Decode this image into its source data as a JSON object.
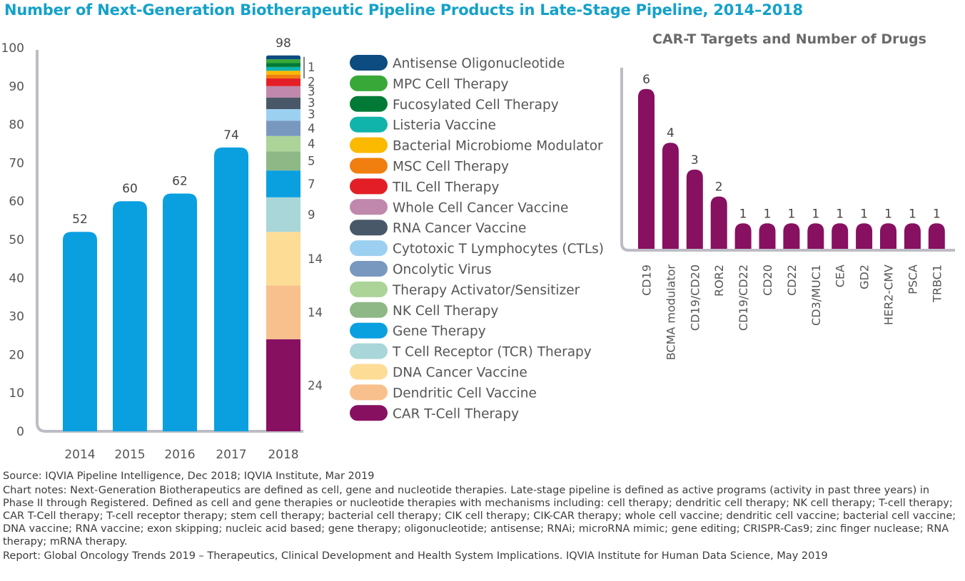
{
  "title": "Number of Next-Generation Biotherapeutic Pipeline Products in Late-Stage Pipeline, 2014–2018",
  "colors": {
    "title": "#14a1c9",
    "bar_blue": "#0aa0e0",
    "axis": "#bcbcc4",
    "car_bar": "#871061"
  },
  "chart_data": [
    {
      "type": "bar",
      "name": "late-stage-pipeline",
      "title": "Number of Next-Generation Biotherapeutic Pipeline Products in Late-Stage Pipeline, 2014–2018",
      "categories": [
        "2014",
        "2015",
        "2016",
        "2017",
        "2018"
      ],
      "values": [
        52,
        60,
        62,
        74,
        98
      ],
      "value_labels": [
        "52",
        "60",
        "62",
        "74",
        "98"
      ],
      "ylim": [
        0,
        100
      ],
      "yticks": [
        "0",
        "10",
        "20",
        "30",
        "40",
        "50",
        "60",
        "70",
        "80",
        "90",
        "100"
      ],
      "grid": false,
      "stacked_2018": {
        "series": [
          {
            "name": "CAR T-Cell Therapy",
            "value": 24,
            "label": "24",
            "color": "#871061"
          },
          {
            "name": "Dendritic Cell Vaccine",
            "value": 14,
            "label": "14",
            "color": "#f8c08c"
          },
          {
            "name": "DNA Cancer Vaccine",
            "value": 14,
            "label": "14",
            "color": "#fddc96"
          },
          {
            "name": "T Cell Receptor (TCR) Therapy",
            "value": 9,
            "label": "9",
            "color": "#a9d6d8"
          },
          {
            "name": "Gene Therapy",
            "value": 7,
            "label": "7",
            "color": "#0aa0e0"
          },
          {
            "name": "NK Cell Therapy",
            "value": 5,
            "label": "5",
            "color": "#8eb886"
          },
          {
            "name": "Therapy Activator/Sensitizer",
            "value": 4,
            "label": "4",
            "color": "#acd498"
          },
          {
            "name": "Oncolytic Virus",
            "value": 4,
            "label": "4",
            "color": "#7898c0"
          },
          {
            "name": "Cytotoxic T Lymphocytes (CTLs)",
            "value": 3,
            "label": "3",
            "color": "#9cd0f0"
          },
          {
            "name": "RNA Cancer Vaccine",
            "value": 3,
            "label": "3",
            "color": "#485868"
          },
          {
            "name": "Whole Cell Cancer Vaccine",
            "value": 3,
            "label": "3",
            "color": "#c088ac"
          },
          {
            "name": "TIL Cell Therapy",
            "value": 2,
            "label": "2",
            "color": "#e41e26"
          },
          {
            "name": "MSC Cell Therapy",
            "value": 1,
            "label": "",
            "color": "#f07f10"
          },
          {
            "name": "Bacterial Microbiome Modulator",
            "value": 1,
            "label": "",
            "color": "#fbb900"
          },
          {
            "name": "Listeria Vaccine",
            "value": 1,
            "label": "",
            "color": "#10b4aa"
          },
          {
            "name": "Fucosylated Cell Therapy",
            "value": 1,
            "label": "",
            "color": "#007a36"
          },
          {
            "name": "MPC Cell Therapy",
            "value": 1,
            "label": "",
            "color": "#38a838"
          },
          {
            "name": "Antisense Oligonucleotide",
            "value": 1,
            "label": "",
            "color": "#0c4c80"
          }
        ],
        "small_segments_label": "1"
      },
      "legend_order": [
        "Antisense Oligonucleotide",
        "MPC Cell Therapy",
        "Fucosylated Cell Therapy",
        "Listeria Vaccine",
        "Bacterial Microbiome Modulator",
        "MSC Cell Therapy",
        "TIL Cell Therapy",
        "Whole Cell Cancer Vaccine",
        "RNA Cancer Vaccine",
        "Cytotoxic T Lymphocytes (CTLs)",
        "Oncolytic Virus",
        "Therapy Activator/Sensitizer",
        "NK Cell Therapy",
        "Gene Therapy",
        "T Cell Receptor (TCR) Therapy",
        "DNA Cancer Vaccine",
        "Dendritic Cell Vaccine",
        "CAR T-Cell Therapy"
      ],
      "legend_position": "right"
    },
    {
      "type": "bar",
      "name": "car-t-targets",
      "title": "CAR-T Targets and Number of Drugs",
      "categories": [
        "CD19",
        "BCMA modulator",
        "CD19/CD20",
        "ROR2",
        "CD19/CD22",
        "CD20",
        "CD22",
        "CD3/MUC1",
        "CEA",
        "GD2",
        "HER2-CMV",
        "PSCA",
        "TRBC1"
      ],
      "values": [
        6,
        4,
        3,
        2,
        1,
        1,
        1,
        1,
        1,
        1,
        1,
        1,
        1
      ],
      "value_labels": [
        "6",
        "4",
        "3",
        "2",
        "1",
        "1",
        "1",
        "1",
        "1",
        "1",
        "1",
        "1",
        "1"
      ],
      "ylim": [
        0,
        7
      ],
      "grid": false
    }
  ],
  "notes": {
    "source": "Source: IQVIA Pipeline Intelligence, Dec 2018; IQVIA Institute, Mar 2019",
    "chart_notes": "Chart notes: Next-Generation Biotherapeutics are defined as cell, gene and nucleotide therapies. Late-stage pipeline is defined as active programs (activity in past three years) in Phase II through Registered. Defined as cell and gene therapies or nucleotide therapies with mechanisms including: cell therapy; dendritic cell therapy; NK cell therapy; T-cell therapy; CAR T-Cell therapy; T-cell receptor therapy; stem cell therapy; bacterial cell therapy; CIK cell therapy; CIK-CAR therapy; whole cell vaccine; dendritic cell vaccine; bacterial cell vaccine; DNA vaccine; RNA vaccine; exon skipping; nucleic acid based; gene therapy; oligonucleotide; antisense; RNAi; microRNA mimic; gene editing; CRISPR-Cas9; zinc finger nuclease; RNA therapy; mRNA therapy.",
    "report": "Report: Global Oncology Trends 2019 – Therapeutics, Clinical Development and Health System Implications. IQVIA Institute for Human Data Science, May 2019"
  }
}
